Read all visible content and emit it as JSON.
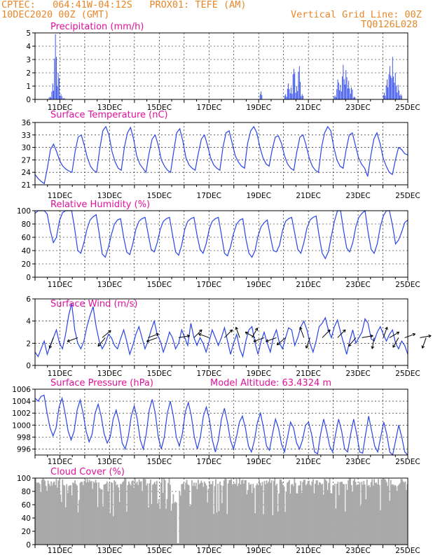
{
  "header": {
    "line1": "CPTEC:   064:41W-04:12S   PROX01: TEFE (AM)",
    "line2": "10DEC2020 00Z (GMT)",
    "grid_note": "Vertical Grid Line: 00Z",
    "code": "TQ0126L028"
  },
  "colors": {
    "header": "#e8862a",
    "panel_title": "#e0119b",
    "series": "#2a45e8",
    "cloud": "#a9a9a9",
    "axis": "#000000"
  },
  "x_tick_labels": [
    "11DEC",
    "13DEC",
    "15DEC",
    "17DEC",
    "19DEC",
    "21DEC",
    "23DEC",
    "25DEC"
  ],
  "chart_data": [
    {
      "type": "bar",
      "title": "Precipitation (mm/h)",
      "x_start": "10DEC2020 00Z",
      "step_hours": 3,
      "ylim": [
        0,
        5
      ],
      "yticks": [
        0,
        1,
        2,
        3,
        4,
        5
      ],
      "grid": true,
      "values": [
        0,
        0,
        0,
        0,
        0,
        0.2,
        1.2,
        4.9,
        2.0,
        0.4,
        0.1,
        0,
        0,
        0,
        0,
        0,
        0,
        0,
        0,
        0,
        0,
        0,
        0,
        0,
        0,
        0.05,
        0,
        0,
        0,
        0,
        0,
        0,
        0,
        0,
        0,
        0,
        0,
        0,
        0,
        0,
        0,
        0,
        0,
        0,
        0,
        0,
        0,
        0,
        0,
        0,
        0,
        0,
        0,
        0,
        0,
        0,
        0,
        0,
        0,
        0,
        0,
        0,
        0,
        0,
        0,
        0,
        0,
        0,
        0,
        0,
        0,
        0,
        0,
        0,
        0,
        0,
        0,
        0,
        0,
        0,
        0,
        0,
        0.6,
        0,
        0,
        0,
        0,
        0,
        0,
        0,
        0,
        0.4,
        1.2,
        0.9,
        2.3,
        1.0,
        2.5,
        0.4,
        0,
        0,
        0,
        0,
        0,
        0,
        0,
        0,
        0,
        0,
        0,
        0.3,
        1.5,
        1.1,
        2.6,
        2.2,
        1.4,
        0.9,
        0.2,
        0,
        0,
        0,
        0,
        0,
        0,
        0,
        0,
        0,
        0,
        0.5,
        1.5,
        2.5,
        3.2,
        2.0,
        1.1,
        0.4,
        0,
        0
      ],
      "note": "3-hourly bars over 10DEC00Z-25DEC00Z"
    },
    {
      "type": "line",
      "title": "Surface Temperature (nC)",
      "x_start": "10DEC2020 00Z",
      "step_hours": 3,
      "ylim": [
        21,
        36
      ],
      "yticks": [
        21,
        24,
        27,
        30,
        33,
        36
      ],
      "grid": true,
      "values": [
        23.5,
        22.5,
        21.8,
        21.3,
        25.0,
        29.5,
        30.8,
        29.0,
        26.8,
        25.5,
        24.8,
        24.3,
        24.0,
        29.0,
        32.5,
        33.0,
        30.5,
        27.5,
        25.5,
        24.5,
        24.0,
        29.5,
        34.0,
        35.0,
        33.0,
        29.0,
        26.5,
        25.0,
        24.5,
        30.0,
        33.5,
        34.8,
        32.0,
        28.0,
        26.0,
        25.0,
        24.0,
        28.5,
        32.0,
        33.0,
        30.5,
        27.0,
        25.5,
        24.5,
        24.0,
        29.0,
        33.5,
        34.5,
        31.5,
        27.5,
        25.8,
        25.0,
        24.5,
        28.5,
        32.0,
        33.0,
        30.5,
        27.5,
        25.8,
        25.0,
        24.5,
        30.0,
        33.5,
        34.0,
        31.0,
        28.0,
        26.5,
        25.5,
        25.0,
        31.0,
        34.0,
        35.0,
        33.5,
        30.0,
        27.5,
        26.0,
        25.5,
        29.5,
        32.5,
        32.8,
        31.0,
        28.0,
        26.0,
        25.0,
        24.5,
        29.0,
        32.5,
        33.0,
        30.5,
        27.5,
        25.5,
        24.5,
        24.0,
        30.0,
        33.5,
        35.0,
        34.0,
        30.0,
        27.0,
        25.5,
        25.0,
        29.5,
        33.0,
        33.5,
        30.5,
        27.5,
        26.0,
        25.0,
        23.0,
        28.0,
        32.0,
        33.5,
        31.0,
        27.5,
        25.5,
        24.0,
        23.5,
        27.0,
        30.0,
        29.5,
        28.5,
        28.2
      ]
    },
    {
      "type": "line",
      "title": "Relative Humidity (%)",
      "x_start": "10DEC2020 00Z",
      "step_hours": 3,
      "ylim": [
        0,
        100
      ],
      "yticks": [
        0,
        20,
        40,
        60,
        80,
        100
      ],
      "grid": true,
      "values": [
        96,
        100,
        100,
        100,
        95,
        70,
        52,
        60,
        85,
        97,
        100,
        100,
        100,
        72,
        40,
        36,
        52,
        72,
        86,
        91,
        94,
        66,
        35,
        30,
        45,
        64,
        80,
        86,
        88,
        60,
        38,
        34,
        50,
        72,
        84,
        88,
        90,
        66,
        42,
        38,
        52,
        72,
        84,
        88,
        90,
        64,
        38,
        33,
        48,
        72,
        84,
        88,
        90,
        64,
        42,
        36,
        50,
        72,
        84,
        88,
        90,
        64,
        36,
        32,
        46,
        66,
        80,
        86,
        88,
        58,
        36,
        30,
        40,
        62,
        76,
        82,
        86,
        62,
        40,
        38,
        48,
        70,
        84,
        88,
        90,
        66,
        42,
        36,
        52,
        74,
        86,
        90,
        92,
        62,
        36,
        28,
        38,
        62,
        84,
        100,
        100,
        70,
        44,
        38,
        52,
        76,
        90,
        96,
        100,
        68,
        42,
        36,
        50,
        76,
        92,
        100,
        100,
        78,
        50,
        56,
        68,
        82,
        86
      ]
    },
    {
      "type": "line",
      "title": "Surface Wind (m/s)",
      "x_start": "10DEC2020 00Z",
      "step_hours": 3,
      "ylim": [
        0,
        6
      ],
      "yticks": [
        0,
        2,
        4,
        6
      ],
      "grid": true,
      "values": [
        1.2,
        0.8,
        1.5,
        2.2,
        1.0,
        1.8,
        2.5,
        3.2,
        2.0,
        1.5,
        2.8,
        4.5,
        5.6,
        3.2,
        2.0,
        1.5,
        2.2,
        3.5,
        4.5,
        5.3,
        3.5,
        2.2,
        1.5,
        2.0,
        2.8,
        2.5,
        1.8,
        1.5,
        2.4,
        3.2,
        2.2,
        1.0,
        1.8,
        2.8,
        3.5,
        2.5,
        1.5,
        2.2,
        3.2,
        4.0,
        2.8,
        2.2,
        1.2,
        2.0,
        3.0,
        2.5,
        1.5,
        2.0,
        3.2,
        2.5,
        1.8,
        3.8,
        2.5,
        1.8,
        2.5,
        2.0,
        1.2,
        2.2,
        3.2,
        2.5,
        1.8,
        2.5,
        3.4,
        2.2,
        1.0,
        2.0,
        2.8,
        1.5,
        0.8,
        2.2,
        3.2,
        3.5,
        2.0,
        1.0,
        2.2,
        3.0,
        2.0,
        1.2,
        2.5,
        3.2,
        2.0,
        1.5,
        2.5,
        3.4,
        3.2,
        1.8,
        2.5,
        3.5,
        4.0,
        3.2,
        2.0,
        1.2,
        2.2,
        3.5,
        3.8,
        4.3,
        3.2,
        2.5,
        3.5,
        4.1,
        3.0,
        2.0,
        1.0,
        2.2,
        3.2,
        2.0,
        2.5,
        3.0,
        4.2,
        3.8,
        2.4,
        2.2,
        3.0,
        3.5,
        2.8,
        2.2,
        2.8,
        3.2,
        2.0,
        1.5,
        2.2,
        1.8,
        1.0
      ],
      "arrows": [
        {
          "t": 6,
          "dir": 200
        },
        {
          "t": 14,
          "dir": 250
        },
        {
          "t": 22,
          "dir": 50
        },
        {
          "t": 23,
          "dir": 220
        },
        {
          "t": 37,
          "dir": 70
        },
        {
          "t": 40,
          "dir": 250
        },
        {
          "t": 47,
          "dir": 80
        },
        {
          "t": 52,
          "dir": 45
        },
        {
          "t": 57,
          "dir": 290
        },
        {
          "t": 62,
          "dir": 45
        },
        {
          "t": 67,
          "dir": 340
        },
        {
          "t": 71,
          "dir": 30
        },
        {
          "t": 72,
          "dir": 300
        },
        {
          "t": 75,
          "dir": 250
        },
        {
          "t": 79,
          "dir": 250
        },
        {
          "t": 82,
          "dir": 230
        },
        {
          "t": 88,
          "dir": 340
        },
        {
          "t": 90,
          "dir": 200
        },
        {
          "t": 94,
          "dir": 45
        },
        {
          "t": 99,
          "dir": 45
        },
        {
          "t": 105,
          "dir": 220
        },
        {
          "t": 107,
          "dir": 80
        },
        {
          "t": 111,
          "dir": 190
        },
        {
          "t": 114,
          "dir": 20
        },
        {
          "t": 116,
          "dir": 60
        },
        {
          "t": 119,
          "dir": 210
        },
        {
          "t": 121,
          "dir": 70
        },
        {
          "t": 126,
          "dir": 80
        },
        {
          "t": 128,
          "dir": 200
        },
        {
          "t": 132,
          "dir": 100
        },
        {
          "t": 139,
          "dir": 50
        },
        {
          "t": 142,
          "dir": 230
        },
        {
          "t": 146,
          "dir": 300
        }
      ]
    },
    {
      "type": "line",
      "title": "Surface Pressure (hPa)",
      "annotation": "Model Altitude: 63.4324 m",
      "x_start": "10DEC2020 00Z",
      "step_hours": 3,
      "ylim": [
        995,
        1006
      ],
      "yticks": [
        996,
        998,
        1000,
        1002,
        1004,
        1006
      ],
      "grid": true,
      "values": [
        1004.5,
        1004.0,
        1004.8,
        1005.0,
        1002.0,
        999.5,
        998.2,
        999.5,
        1003.0,
        1004.5,
        1002.0,
        999.0,
        997.5,
        999.0,
        1002.5,
        1004.2,
        1002.0,
        999.0,
        997.2,
        998.5,
        1002.0,
        1003.5,
        1001.5,
        998.5,
        997.0,
        998.0,
        1001.0,
        1002.5,
        1000.5,
        997.0,
        996.0,
        998.0,
        1001.5,
        1003.2,
        1001.0,
        997.5,
        996.0,
        998.5,
        1002.5,
        1004.3,
        1002.0,
        998.0,
        996.0,
        998.0,
        1002.0,
        1004.0,
        1001.5,
        998.0,
        996.5,
        998.5,
        1002.2,
        1003.8,
        1001.5,
        998.0,
        996.0,
        998.0,
        1001.5,
        1003.0,
        1001.0,
        997.5,
        995.5,
        997.5,
        1001.0,
        1002.8,
        1000.5,
        997.5,
        996.0,
        998.0,
        1000.5,
        1001.5,
        999.5,
        996.5,
        995.5,
        997.5,
        1000.5,
        1002.0,
        999.5,
        996.5,
        995.8,
        998.5,
        1001.0,
        999.5,
        996.8,
        995.5,
        998.0,
        1000.5,
        999.5,
        997.0,
        996.0,
        997.5,
        1000.0,
        1000.5,
        998.5,
        995.5,
        995.2,
        998.5,
        1001.0,
        999.0,
        996.5,
        995.5,
        998.5,
        1001.0,
        999.0,
        996.0,
        995.5,
        998.5,
        1001.0,
        998.5,
        995.5,
        995.3,
        998.5,
        1001.5,
        999.0,
        996.5,
        995.5,
        998.0,
        1000.5,
        998.5,
        995.5,
        995.0,
        997.5,
        1000.0,
        998.0,
        995.5,
        995.0
      ]
    },
    {
      "type": "bar",
      "title": "Cloud Cover (%)",
      "x_start": "10DEC2020 00Z",
      "step_hours": 1,
      "ylim": [
        0,
        100
      ],
      "yticks": [
        0,
        20,
        40,
        60,
        80,
        100
      ],
      "grid": true,
      "values_summary": "mostly 85-100 with frequent dips to 40-80 and a drop near 0 around 15DEC18Z"
    }
  ]
}
